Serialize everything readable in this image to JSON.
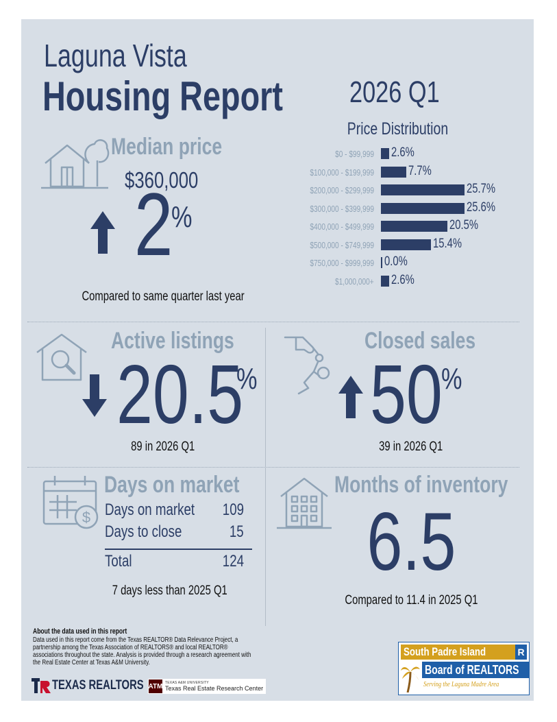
{
  "header": {
    "city": "Laguna Vista",
    "title": "Housing Report",
    "period": "2026 Q1"
  },
  "median_price": {
    "heading": "Median price",
    "value": "$360,000",
    "change": "2",
    "unit": "%",
    "direction": "up",
    "note": "Compared to same quarter last year"
  },
  "price_distribution": {
    "title": "Price Distribution",
    "chart_data": {
      "type": "bar",
      "orientation": "horizontal",
      "title": "Price Distribution",
      "categories": [
        "$0 - $99,999",
        "$100,000 - $199,999",
        "$200,000 - $299,999",
        "$300,000 - $399,999",
        "$400,000 - $499,999",
        "$500,000 - $749,999",
        "$750,000 - $999,999",
        "$1,000,000+"
      ],
      "values": [
        2.6,
        7.7,
        25.7,
        25.6,
        20.5,
        15.4,
        0.0,
        2.6
      ],
      "labels": [
        "2.6%",
        "7.7%",
        "25.7%",
        "25.6%",
        "20.5%",
        "15.4%",
        "0.0%",
        "2.6%"
      ],
      "xlim": [
        0,
        25.7
      ]
    }
  },
  "active_listings": {
    "heading": "Active listings",
    "change": "20.5",
    "unit": "%",
    "direction": "down",
    "note": "89 in 2026 Q1"
  },
  "closed_sales": {
    "heading": "Closed sales",
    "change": "50",
    "unit": "%",
    "direction": "up",
    "note": "39 in 2026 Q1"
  },
  "days_on_market": {
    "heading": "Days on market",
    "rows": [
      {
        "label": "Days on market",
        "value": "109"
      },
      {
        "label": "Days to close",
        "value": "15"
      }
    ],
    "total_label": "Total",
    "total_value": "124",
    "note": "7 days less than 2025 Q1"
  },
  "months_inventory": {
    "heading": "Months of inventory",
    "value": "6.5",
    "note": "Compared to 11.4 in 2025 Q1"
  },
  "footer": {
    "about_title": "About the data used in this report",
    "about_text": "Data used in this report come from the Texas REALTOR® Data Relevance Project, a partnership among the Texas Association of REALTORS® and local REALTOR® associations throughout the state. Analysis is provided through a research agreement with the Real Estate Center at Texas A&M University.",
    "texas_realtors": "TEXAS REALTORS",
    "tamu_small": "TEXAS A&M UNIVERSITY",
    "tamu_center": "Texas Real Estate Research Center",
    "board_line1": "South Padre Island",
    "board_line2": "Board of REALTORS",
    "board_tagline": "Serving the Laguna Madre Area"
  },
  "colors": {
    "navy": "#2c3e66",
    "muted": "#8fa3b6",
    "panel": "#d7dee6",
    "board_gold": "#d4a01e",
    "board_blue": "#1f5fa8"
  }
}
